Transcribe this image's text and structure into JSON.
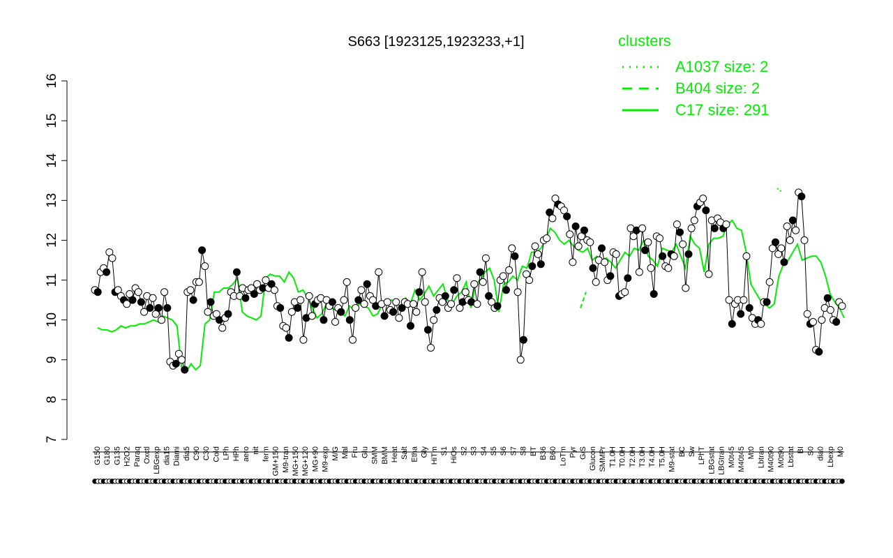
{
  "chart_data": {
    "type": "line",
    "title": "S663 [1923125,1923233,+1]",
    "xlabel": "",
    "ylabel": "",
    "ylim": [
      7,
      16
    ],
    "yticks": [
      7,
      8,
      9,
      10,
      11,
      12,
      13,
      14,
      15,
      16
    ],
    "legend": {
      "title": "clusters",
      "placement": "top-right",
      "entries": [
        {
          "label": "A1037 size: 2",
          "style": "dotted"
        },
        {
          "label": "B404 size: 2",
          "style": "dashed"
        },
        {
          "label": "C17 size: 291",
          "style": "solid"
        }
      ]
    },
    "colors": {
      "cluster_line": "#00ee00",
      "data_line": "#000000",
      "marker_fill_open": "#ffffff",
      "marker_fill_closed": "#000000"
    },
    "x_labels_top": [
      "G150",
      "G180",
      "G135",
      "H2O2",
      "Paraq",
      "Oxctl",
      "LBGexp",
      "dia15",
      "Diami",
      "dia5",
      "C90",
      "C30",
      "Cold",
      "LPh",
      "HPh",
      "aero",
      "nit",
      "ferm",
      "GM+150",
      "M9-tran",
      "MG+150",
      "MG+120",
      "MG+90",
      "M9-exp",
      "M/G",
      "Mal",
      "Fru",
      "Glu",
      "SMM",
      "BMM",
      "Heat",
      "Salt",
      "Etha",
      "Gly",
      "HiTm",
      "S1",
      "HiOs",
      "S2",
      "S3",
      "S4",
      "S5",
      "S6",
      "S7",
      "S8",
      "BT",
      "B36",
      "B60",
      "LoTm",
      "Pyr",
      "G/S",
      "Glucon",
      "SMMPr",
      "T1.0H",
      "T0.0H",
      "T2.0H",
      "T3.0H",
      "T4.0H",
      "T5.0H",
      "M9-stat",
      "BC",
      "Sw",
      "LPhT",
      "LBGstat",
      "LBGtran",
      "M0t45",
      "M40t45",
      "Mt0",
      "Lbtran",
      "M40t90",
      "M0t90",
      "Lbstat",
      "BI",
      "S0",
      "dia0",
      "Lbexp",
      "M0"
    ],
    "series": [
      {
        "kind": "points",
        "y": [
          10.75,
          10.7,
          11.2,
          11.3,
          11.2,
          11.7,
          11.55,
          10.7,
          10.75,
          10.6,
          10.5,
          10.4,
          10.65,
          10.5,
          10.8,
          10.7,
          10.45,
          10.2,
          10.6,
          10.3,
          10.55,
          10.15,
          10.3,
          10.0,
          10.7,
          10.3,
          8.95,
          8.85,
          8.9,
          9.15,
          9.0,
          8.75,
          10.7,
          10.75,
          10.5,
          10.95,
          10.95,
          11.75,
          11.35,
          10.2,
          10.45,
          10.1,
          10.15,
          10.0,
          9.8,
          10.05,
          10.15,
          10.7,
          10.6,
          11.2,
          10.6,
          10.8,
          10.55,
          10.75,
          10.8,
          10.65,
          10.9,
          10.75,
          10.8,
          11.0,
          10.8,
          10.9,
          10.75,
          10.35,
          10.3,
          9.85,
          9.8,
          9.55,
          10.2,
          10.45,
          10.3,
          10.5,
          9.5,
          10.05,
          10.6,
          10.1,
          10.4,
          10.5,
          10.55,
          10.0,
          10.5,
          10.35,
          10.45,
          9.95,
          10.3,
          10.2,
          10.5,
          10.95,
          10.0,
          9.5,
          10.3,
          10.5,
          10.75,
          10.4,
          10.9,
          10.6,
          10.5,
          10.35,
          11.2,
          10.4,
          10.1,
          10.45,
          10.25,
          10.2,
          10.45,
          10.05,
          10.3,
          10.45,
          10.4,
          9.85,
          10.4,
          10.2,
          10.7,
          11.2,
          10.45,
          9.75,
          9.3,
          10.0,
          10.25,
          10.55,
          10.45,
          10.6,
          10.3,
          10.4,
          10.75,
          11.05,
          10.3,
          10.45,
          10.7,
          10.5,
          10.45,
          10.9,
          10.4,
          11.2,
          10.95,
          11.55,
          10.6,
          10.45,
          10.3,
          10.35,
          11.0,
          11.1,
          10.75,
          11.25,
          11.8,
          11.6,
          10.7,
          9.0,
          9.5,
          11.15,
          11.0,
          11.35,
          11.85,
          11.65,
          11.4,
          12.0,
          12.05,
          12.7,
          12.55,
          13.05,
          12.9,
          12.85,
          12.75,
          12.6,
          12.15,
          11.45,
          12.35,
          11.85,
          12.1,
          12.25,
          12.0,
          11.95,
          11.3,
          10.95,
          11.5,
          11.8,
          11.45,
          11.0,
          11.1,
          11.7,
          11.65,
          10.6,
          10.65,
          10.7,
          11.05,
          12.3,
          12.1,
          12.25,
          11.2,
          12.3,
          11.75,
          11.95,
          11.3,
          10.65,
          12.1,
          12.05,
          11.6,
          11.35,
          11.3,
          11.65,
          11.6,
          12.4,
          12.2,
          11.9,
          10.8,
          11.65,
          12.3,
          12.5,
          12.85,
          12.95,
          13.05,
          12.75,
          11.15,
          12.5,
          12.3,
          12.55,
          12.45,
          12.3,
          12.4,
          10.5,
          9.9,
          10.4,
          10.5,
          10.15,
          10.5,
          11.6,
          10.3,
          10.05,
          9.9,
          10.0,
          9.9,
          10.45,
          10.45,
          10.95,
          11.8,
          11.95,
          11.65,
          11.8,
          11.45,
          12.35,
          12.0,
          12.5,
          12.25,
          13.2,
          13.1,
          12.0,
          10.15,
          9.9,
          9.95,
          9.25,
          9.2,
          10.0,
          10.3,
          10.55,
          10.25,
          10.0,
          9.95,
          10.45,
          10.35
        ]
      },
      {
        "kind": "line",
        "name": "C17",
        "y": [
          9.8,
          9.75,
          9.75,
          9.7,
          9.75,
          9.85,
          9.8,
          9.85,
          9.85,
          9.9,
          9.9,
          9.95,
          10.0,
          9.95,
          10.1,
          10.05,
          10.0,
          9.85,
          8.8,
          8.7,
          8.9,
          8.75,
          8.85,
          9.9,
          10.0,
          10.7,
          10.7,
          10.8,
          10.8,
          10.9,
          11.05,
          10.2,
          10.1,
          10.05,
          10.0,
          10.1,
          11.05,
          11.15,
          11.1,
          11.1,
          10.95,
          11.2,
          11.05,
          10.7,
          10.75,
          10.55,
          10.3,
          10.05,
          10.15,
          10.4,
          10.3,
          10.25,
          10.2,
          10.1,
          10.35,
          10.25,
          10.4,
          10.35,
          10.3,
          10.1,
          10.15,
          10.4,
          10.45,
          10.5,
          10.45,
          10.3,
          10.55,
          10.4,
          10.75,
          10.5,
          10.65,
          10.85,
          10.6,
          10.75,
          10.9,
          10.5,
          10.4,
          10.6,
          10.7,
          10.95,
          10.3,
          10.9,
          11.0,
          11.2,
          11.3,
          11.0,
          10.2,
          10.9,
          10.95,
          11.1,
          11.0,
          11.35,
          11.3,
          11.7,
          11.7,
          11.8,
          12.0,
          12.3,
          12.2,
          12.0,
          11.9,
          12.0,
          11.85,
          11.75,
          11.7,
          11.8,
          11.5,
          11.6,
          11.5,
          11.55,
          11.45,
          11.3,
          11.5,
          11.7,
          11.6,
          11.8,
          11.75,
          12.0,
          11.6,
          11.5,
          11.35,
          11.8,
          11.75,
          11.7,
          11.9,
          11.6,
          11.3,
          12.1,
          11.9,
          11.8,
          11.2,
          11.9,
          12.05,
          12.05,
          12.1,
          12.4,
          12.5,
          12.3,
          12.25,
          11.7,
          10.9,
          10.7,
          10.5,
          10.4,
          10.3,
          10.4,
          11.1,
          11.4,
          11.5,
          11.7,
          11.9,
          11.5,
          11.55,
          11.6,
          11.6,
          11.45,
          11.1,
          10.65,
          10.45,
          10.3,
          10.05
        ]
      },
      {
        "kind": "line",
        "name": "A1037",
        "y": [
          13.3,
          13.2
        ]
      },
      {
        "kind": "line",
        "name": "B404",
        "y": [
          10.3,
          10.7
        ]
      }
    ]
  }
}
